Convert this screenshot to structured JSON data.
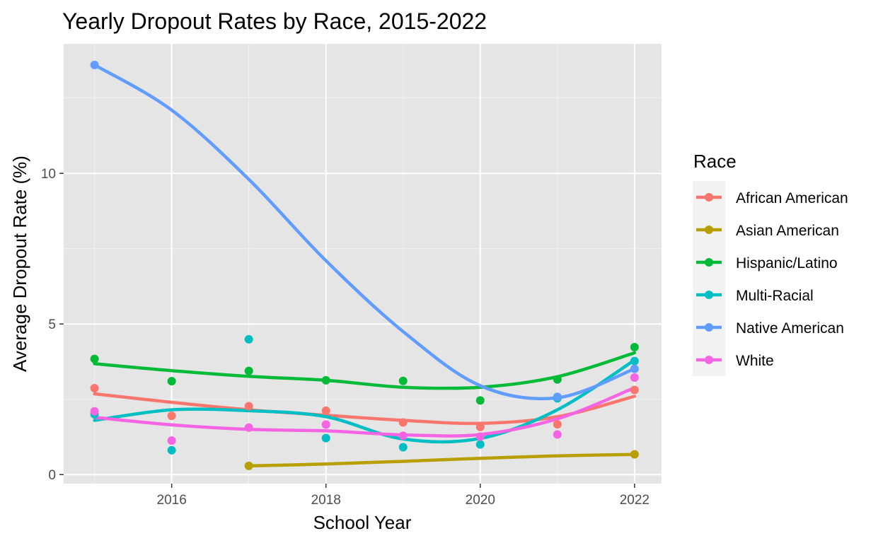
{
  "chart_data": {
    "type": "scatter",
    "title": "Yearly Dropout Rates by Race, 2015-2022",
    "xlabel": "School Year",
    "ylabel": "Average Dropout Rate (%)",
    "xlim": [
      2014.6,
      2022.35
    ],
    "ylim": [
      -0.3,
      14.3
    ],
    "x_ticks": [
      2016,
      2018,
      2020,
      2022
    ],
    "y_ticks": [
      0,
      5,
      10
    ],
    "grid": true,
    "legend_title": "Race",
    "legend_position": "right",
    "background": "#e5e5e5",
    "trend": "smooth",
    "series": [
      {
        "name": "African American",
        "color": "#f8766d",
        "x": [
          2015,
          2016,
          2017,
          2018,
          2019,
          2020,
          2021,
          2022
        ],
        "values": [
          2.87,
          1.95,
          2.27,
          2.12,
          1.73,
          1.58,
          1.67,
          2.81
        ],
        "trend": [
          2.68,
          2.4,
          2.15,
          1.97,
          1.8,
          1.7,
          1.92,
          2.6
        ]
      },
      {
        "name": "Asian American",
        "color": "#b79f00",
        "x": [
          2017,
          2022
        ],
        "values": [
          0.29,
          0.67
        ],
        "trend_x": [
          2017,
          2018,
          2019,
          2020,
          2021,
          2022
        ],
        "trend": [
          0.29,
          0.35,
          0.44,
          0.54,
          0.62,
          0.67
        ]
      },
      {
        "name": "Hispanic/Latino",
        "color": "#00ba38",
        "x": [
          2015,
          2016,
          2017,
          2018,
          2019,
          2020,
          2021,
          2022
        ],
        "values": [
          3.84,
          3.1,
          3.44,
          3.13,
          3.11,
          2.46,
          3.16,
          4.23
        ],
        "trend": [
          3.68,
          3.45,
          3.26,
          3.13,
          2.9,
          2.9,
          3.25,
          4.04
        ]
      },
      {
        "name": "Multi-Racial",
        "color": "#00bfc4",
        "x": [
          2015,
          2016,
          2017,
          2018,
          2019,
          2020,
          2021,
          2022
        ],
        "values": [
          2.0,
          0.81,
          4.49,
          1.21,
          0.91,
          1.0,
          2.53,
          3.77
        ],
        "trend": [
          1.8,
          2.15,
          2.12,
          1.92,
          1.18,
          1.2,
          2.15,
          3.8
        ]
      },
      {
        "name": "Native American",
        "color": "#619cff",
        "x": [
          2015,
          2021,
          2022
        ],
        "values": [
          13.6,
          2.58,
          3.51
        ],
        "trend": [
          13.6,
          12.1,
          9.8,
          7.1,
          4.75,
          2.95,
          2.55,
          3.51
        ]
      },
      {
        "name": "White",
        "color": "#f564e3",
        "x": [
          2015,
          2016,
          2017,
          2018,
          2019,
          2020,
          2021,
          2022
        ],
        "values": [
          2.1,
          1.13,
          1.56,
          1.66,
          1.29,
          1.26,
          1.33,
          3.22
        ],
        "trend": [
          1.9,
          1.65,
          1.5,
          1.45,
          1.32,
          1.33,
          1.85,
          2.88
        ]
      }
    ]
  }
}
